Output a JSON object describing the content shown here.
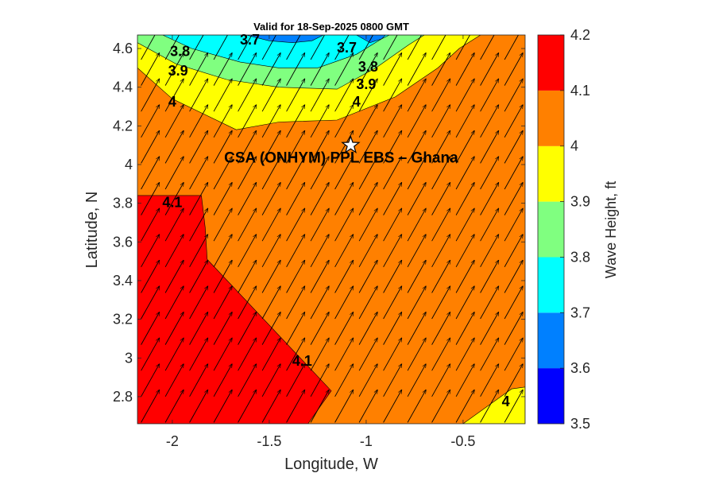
{
  "chart_data": {
    "type": "contour",
    "title": "Valid for 18-Sep-2025 0800 GMT",
    "xlabel": "Longitude, W",
    "ylabel": "Latitude, N",
    "xlim": [
      -2.18,
      -0.18
    ],
    "ylim": [
      2.66,
      4.67
    ],
    "x_ticks": [
      -2,
      -1.5,
      -1,
      -0.5
    ],
    "x_tick_labels": [
      "-2",
      "-1.5",
      "-1",
      "-0.5"
    ],
    "y_ticks": [
      2.8,
      3.0,
      3.2,
      3.4,
      3.6,
      3.8,
      4.0,
      4.2,
      4.4,
      4.6
    ],
    "y_tick_labels": [
      "2.8",
      "3",
      "3.2",
      "3.4",
      "3.6",
      "3.8",
      "4",
      "4.2",
      "4.4",
      "4.6"
    ],
    "colorbar": {
      "label": "Wave Height, ft",
      "ticks": [
        "3.5",
        "3.6",
        "3.7",
        "3.8",
        "3.9",
        "4",
        "4.1",
        "4.2"
      ],
      "levels": [
        3.5,
        3.6,
        3.7,
        3.8,
        3.9,
        4.0,
        4.1,
        4.2
      ],
      "colors": [
        "#0000ff",
        "#0080ff",
        "#00ffff",
        "#80ff80",
        "#ffff00",
        "#ff8000",
        "#ff0000"
      ]
    },
    "background_value": 4.05,
    "regions": [
      {
        "level": 4.1,
        "color": "#ff0000",
        "polygon": [
          [
            -2.18,
            3.84
          ],
          [
            -1.85,
            3.84
          ],
          [
            -1.83,
            3.67
          ],
          [
            -1.82,
            3.51
          ],
          [
            -1.18,
            2.83
          ],
          [
            -1.3,
            2.66
          ],
          [
            -2.18,
            2.66
          ]
        ]
      },
      {
        "level": 3.95,
        "color": "#ffff00",
        "polygon": [
          [
            -2.18,
            4.5
          ],
          [
            -2.0,
            4.34
          ],
          [
            -1.67,
            4.18
          ],
          [
            -1.45,
            4.22
          ],
          [
            -1.15,
            4.23
          ],
          [
            -0.85,
            4.35
          ],
          [
            -0.63,
            4.5
          ],
          [
            -0.52,
            4.6
          ],
          [
            -0.41,
            4.67
          ],
          [
            -2.18,
            4.67
          ]
        ]
      },
      {
        "level": 3.85,
        "color": "#80ff80",
        "polygon": [
          [
            -2.18,
            4.63
          ],
          [
            -1.98,
            4.52
          ],
          [
            -1.72,
            4.44
          ],
          [
            -1.45,
            4.4
          ],
          [
            -1.15,
            4.39
          ],
          [
            -0.95,
            4.5
          ],
          [
            -0.78,
            4.62
          ],
          [
            -0.7,
            4.67
          ],
          [
            -2.18,
            4.67
          ]
        ]
      },
      {
        "level": 3.75,
        "color": "#00ffff",
        "polygon": [
          [
            -2.05,
            4.67
          ],
          [
            -1.9,
            4.6
          ],
          [
            -1.65,
            4.53
          ],
          [
            -1.45,
            4.5
          ],
          [
            -1.25,
            4.5
          ],
          [
            -1.05,
            4.57
          ],
          [
            -0.92,
            4.65
          ],
          [
            -0.88,
            4.67
          ]
        ]
      },
      {
        "level": 3.65,
        "color": "#0080ff",
        "polygon": [
          [
            -1.62,
            4.67
          ],
          [
            -1.5,
            4.64
          ],
          [
            -1.38,
            4.63
          ],
          [
            -1.28,
            4.64
          ],
          [
            -1.22,
            4.67
          ]
        ]
      },
      {
        "level": 3.65,
        "color": "#0080ff",
        "polygon": [
          [
            -1.05,
            4.67
          ],
          [
            -0.98,
            4.63
          ],
          [
            -0.92,
            4.65
          ],
          [
            -0.9,
            4.67
          ]
        ]
      },
      {
        "level": 3.95,
        "color": "#ffff00",
        "polygon": [
          [
            -0.5,
            2.66
          ],
          [
            -0.25,
            2.84
          ],
          [
            -0.18,
            2.85
          ],
          [
            -0.18,
            2.66
          ]
        ]
      }
    ],
    "contour_labels": [
      {
        "text": "3.7",
        "lon": -1.6,
        "lat": 4.64
      },
      {
        "text": "3.7",
        "lon": -1.1,
        "lat": 4.6
      },
      {
        "text": "3.8",
        "lon": -1.96,
        "lat": 4.58
      },
      {
        "text": "3.8",
        "lon": -0.99,
        "lat": 4.5
      },
      {
        "text": "3.9",
        "lon": -1.97,
        "lat": 4.48
      },
      {
        "text": "3.9",
        "lon": -1.0,
        "lat": 4.41
      },
      {
        "text": "4",
        "lon": -2.0,
        "lat": 4.32
      },
      {
        "text": "4",
        "lon": -1.05,
        "lat": 4.32
      },
      {
        "text": "4.1",
        "lon": -2.0,
        "lat": 3.8
      },
      {
        "text": "4.1",
        "lon": -1.33,
        "lat": 2.98
      },
      {
        "text": "4",
        "lon": -0.28,
        "lat": 2.77
      }
    ],
    "site": {
      "label": "CSA (ONHYM) PPL EBS  – Ghana",
      "lon": -1.08,
      "lat": 4.1
    },
    "wind_vectors": {
      "direction": "toward north-northeast",
      "rows": 15,
      "cols": 16
    }
  }
}
